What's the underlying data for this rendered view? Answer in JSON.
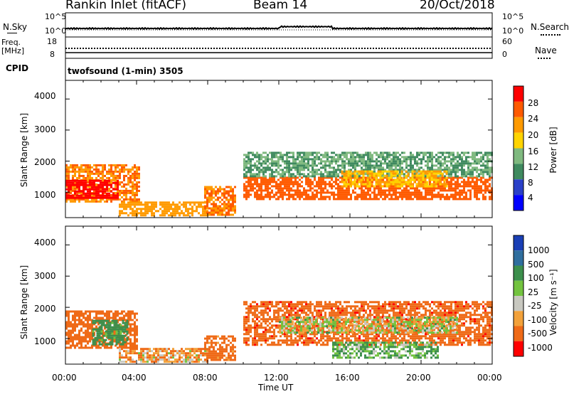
{
  "header": {
    "station": "Rankin Inlet (fitACF)",
    "beam": "Beam 14",
    "date": "20/Oct/2018"
  },
  "params": {
    "nsky_label": "N.Sky",
    "nsky_ticks": [
      "10^5",
      "10^0"
    ],
    "nsearch_label": "N.Search",
    "nsearch_ticks": [
      "10^5",
      "10^0"
    ],
    "freq_label": "Freq.",
    "freq_unit": "[MHz]",
    "freq_ticks": [
      "18",
      "8"
    ],
    "nave_label": "Nave",
    "nave_ticks": [
      "60",
      "0"
    ],
    "cpid_label": "CPID",
    "cpid_text": "twofsound (1-min) 3505"
  },
  "power_panel": {
    "ylabel": "Slant Range [km]",
    "yticks": [
      "4000",
      "3000",
      "2000",
      "1000"
    ],
    "colorbar_label": "Power [dB]",
    "colorbar_ticks": [
      "28",
      "24",
      "20",
      "16",
      "12",
      "8",
      "4"
    ],
    "colorbar_colors": [
      "#ff0000",
      "#ff5a00",
      "#ff9a00",
      "#ffd400",
      "#7fb97f",
      "#3f8a5f",
      "#2a40c8",
      "#0000ff"
    ]
  },
  "velocity_panel": {
    "ylabel": "Slant Range [km]",
    "yticks": [
      "4000",
      "3000",
      "2000",
      "1000"
    ],
    "colorbar_label": "Velocity [m s⁻¹]",
    "colorbar_ticks": [
      "1000",
      "500",
      "100",
      "25",
      "-25",
      "-100",
      "-500",
      "-1000"
    ],
    "colorbar_colors": [
      "#1a3fb5",
      "#2f6e9e",
      "#3c8f4c",
      "#73c33f",
      "#c8c8c0",
      "#f2a13a",
      "#ef6a17",
      "#ff0000"
    ]
  },
  "xaxis": {
    "ticks": [
      "00:00",
      "04:00",
      "08:00",
      "12:00",
      "16:00",
      "20:00",
      "00:00"
    ],
    "label": "Time UT"
  },
  "chart_data": [
    {
      "type": "heatmap",
      "title": "Power",
      "xlabel": "Time UT",
      "ylabel": "Slant Range [km]",
      "xlim": [
        0,
        24
      ],
      "ylim": [
        180,
        4600
      ],
      "colorbar": {
        "label": "Power [dB]",
        "range": [
          0,
          32
        ]
      },
      "regions": [
        {
          "t0": 0.0,
          "t1": 4.2,
          "r0": 700,
          "r1": 1900,
          "value": 24
        },
        {
          "t0": 0.0,
          "t1": 3.0,
          "r0": 850,
          "r1": 1400,
          "value": 30
        },
        {
          "t0": 3.0,
          "t1": 8.0,
          "r0": 250,
          "r1": 700,
          "value": 22
        },
        {
          "t0": 7.8,
          "t1": 9.5,
          "r0": 300,
          "r1": 1200,
          "value": 24
        },
        {
          "t0": 10.0,
          "t1": 24.0,
          "r0": 800,
          "r1": 1500,
          "value": 26
        },
        {
          "t0": 10.0,
          "t1": 24.0,
          "r0": 1500,
          "r1": 2300,
          "value": 12
        },
        {
          "t0": 15.5,
          "t1": 21.5,
          "r0": 1200,
          "r1": 1700,
          "value": 20
        }
      ]
    },
    {
      "type": "heatmap",
      "title": "Velocity",
      "xlabel": "Time UT",
      "ylabel": "Slant Range [km]",
      "xlim": [
        0,
        24
      ],
      "ylim": [
        180,
        4600
      ],
      "colorbar": {
        "label": "Velocity [m s⁻¹]",
        "range": [
          -1000,
          1000
        ]
      },
      "regions": [
        {
          "t0": 0.0,
          "t1": 4.0,
          "r0": 700,
          "r1": 1900,
          "value": -300
        },
        {
          "t0": 1.5,
          "t1": 3.5,
          "r0": 800,
          "r1": 1600,
          "value": 200
        },
        {
          "t0": 3.0,
          "t1": 8.0,
          "r0": 250,
          "r1": 700,
          "value": -80
        },
        {
          "t0": 7.8,
          "t1": 9.5,
          "r0": 300,
          "r1": 1100,
          "value": -200
        },
        {
          "t0": 10.0,
          "t1": 24.0,
          "r0": 800,
          "r1": 2200,
          "value": -400
        },
        {
          "t0": 12.0,
          "t1": 22.0,
          "r0": 1200,
          "r1": 1700,
          "value": 0
        },
        {
          "t0": 15.0,
          "t1": 21.0,
          "r0": 400,
          "r1": 900,
          "value": 100
        }
      ]
    }
  ]
}
